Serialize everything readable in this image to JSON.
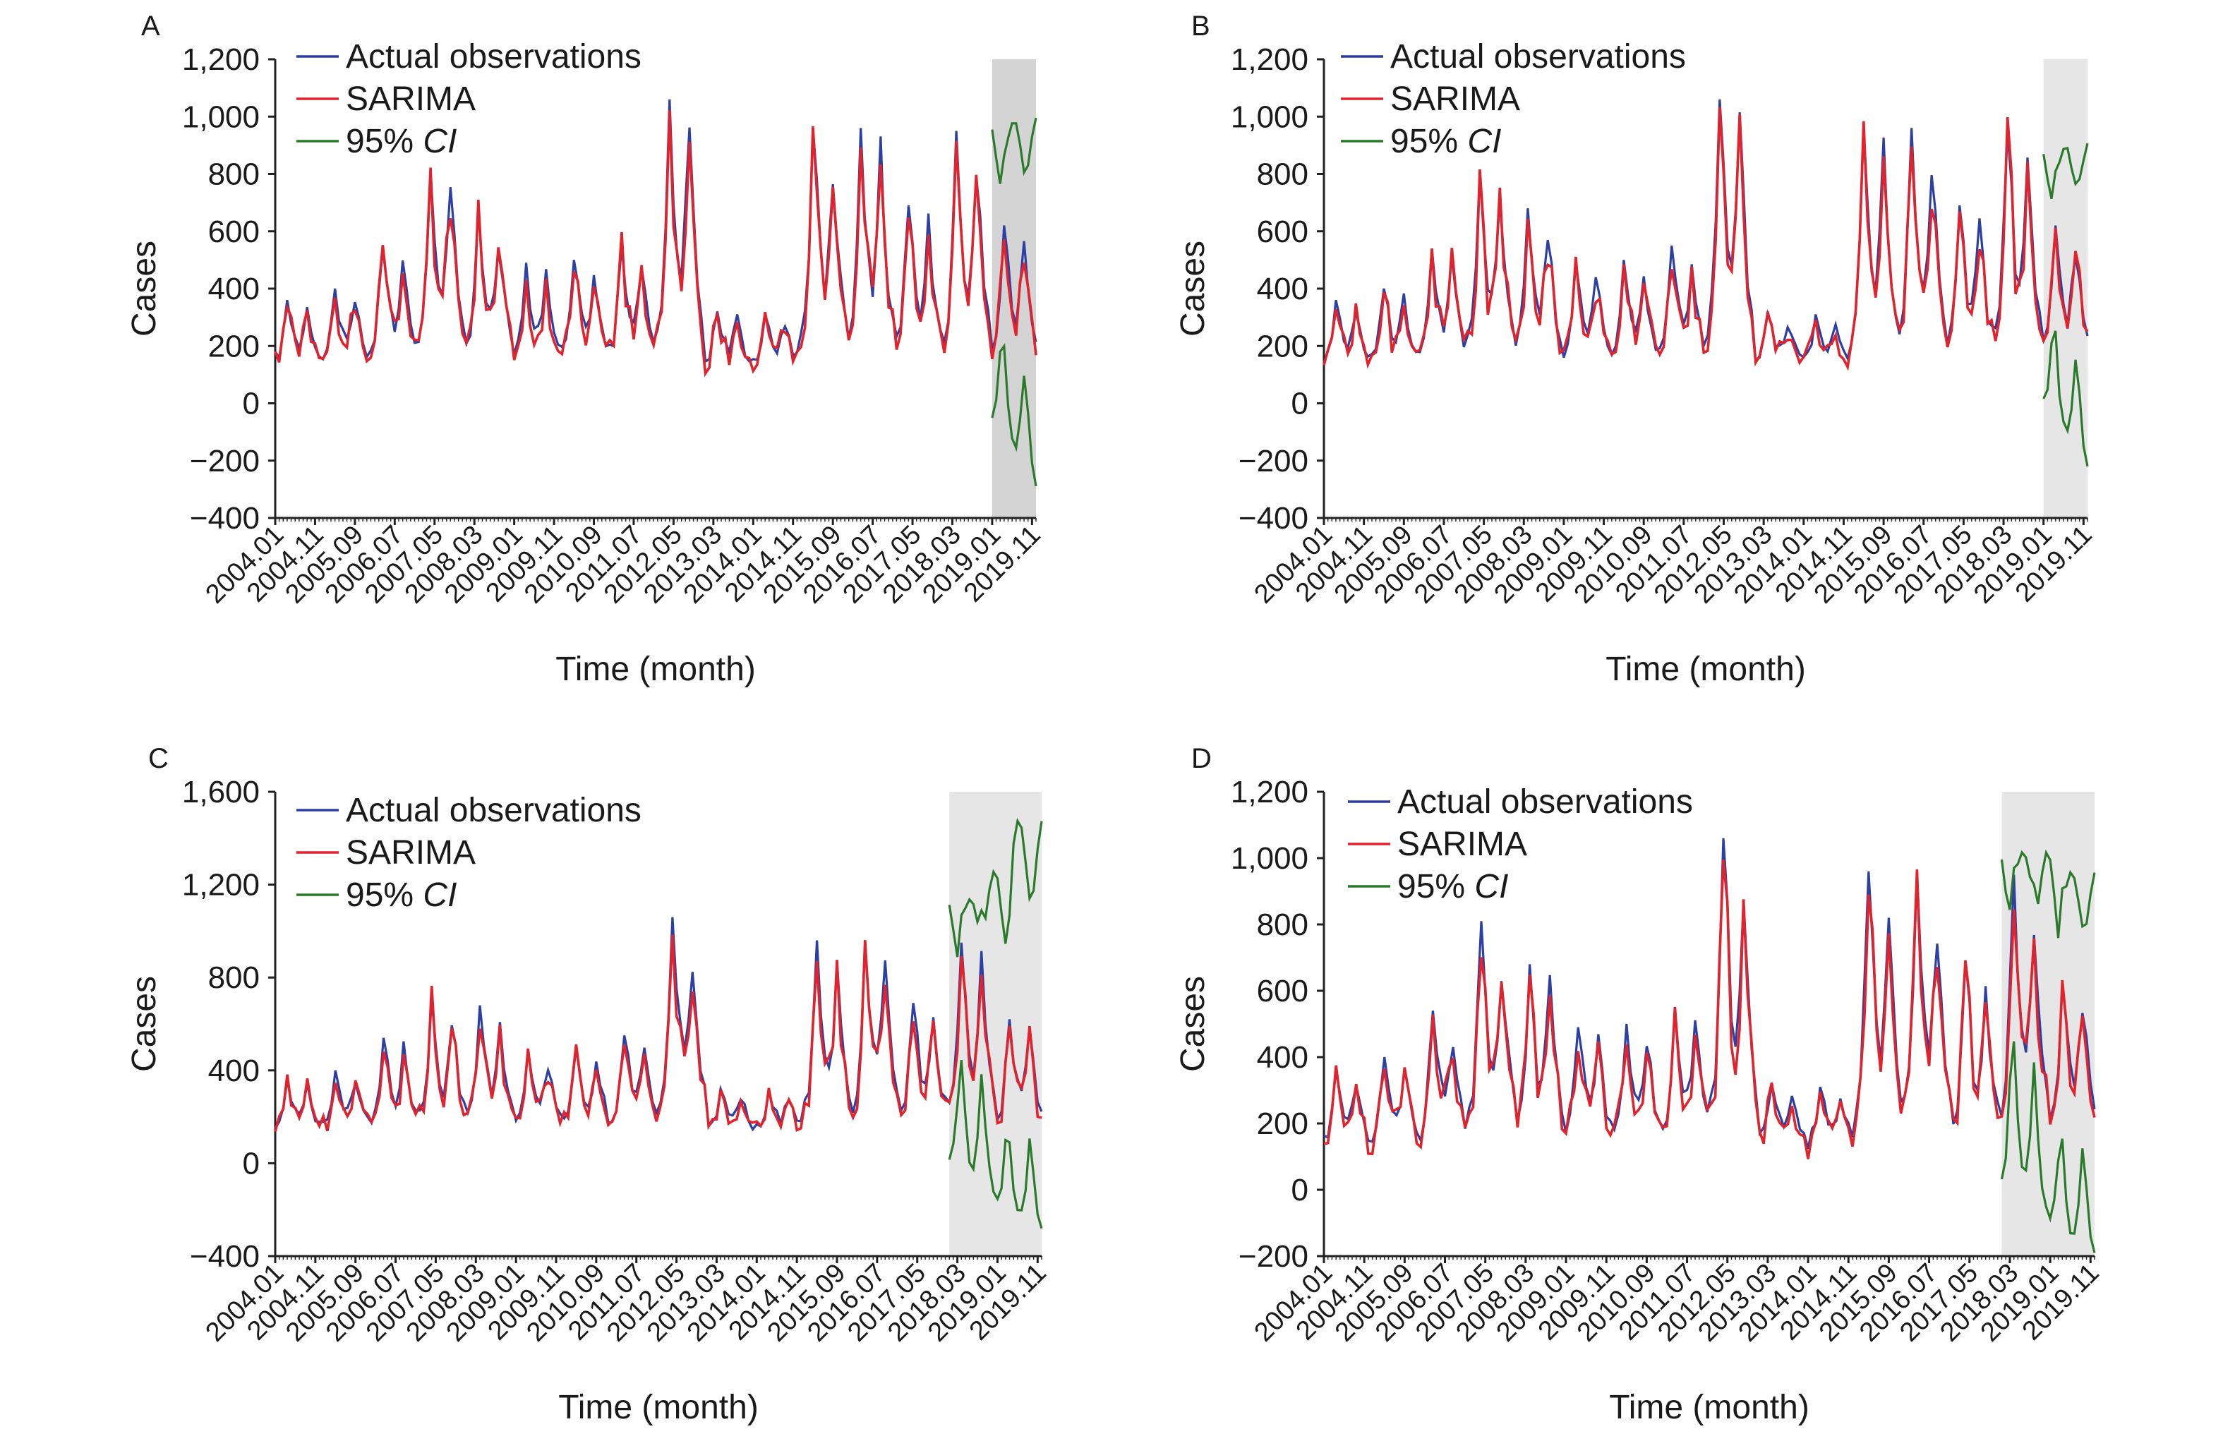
{
  "figure": {
    "time_axis": {
      "start_year": 2004,
      "end_year": 2019,
      "labels": [
        "2004.01",
        "2004.11",
        "2005.09",
        "2006.07",
        "2007.05",
        "2008.03",
        "2009.01",
        "2009.11",
        "2010.09",
        "2011.07",
        "2012.05",
        "2013.03",
        "2014.01",
        "2014.11",
        "2015.09",
        "2016.07",
        "2017.05",
        "2018.03",
        "2019.01",
        "2019.11"
      ]
    },
    "colors": {
      "actual": "#2e3fa3",
      "sarima": "#e0232c",
      "ci": "#2b7a2b",
      "forecast_shade_dark": "#d9d9d9",
      "forecast_shade_light": "#e6e6e6"
    }
  },
  "chart_data": [
    {
      "panel_label": "A",
      "type": "line",
      "xlabel": "Time (month)",
      "ylabel": "Cases",
      "ylim": [
        -400,
        1200
      ],
      "yticks": [
        "1,200",
        "1,000",
        "800",
        "600",
        "400",
        "200",
        "0",
        "−200",
        "−400"
      ],
      "ytick_values": [
        1200,
        1000,
        800,
        600,
        400,
        200,
        0,
        -200,
        -400
      ],
      "xtick_labels": [
        "2004.01",
        "2004.11",
        "2005.09",
        "2006.07",
        "2007.05",
        "2008.03",
        "2009.01",
        "2009.11",
        "2010.09",
        "2011.07",
        "2012.05",
        "2013.03",
        "2014.01",
        "2014.11",
        "2015.09",
        "2016.07",
        "2017.05",
        "2018.03",
        "2019.01",
        "2019.11"
      ],
      "legend": [
        {
          "label_main": "Actual observations",
          "label_italic": "",
          "color": "#2e3fa3"
        },
        {
          "label_main": "SARIMA",
          "label_italic": "",
          "color": "#e0232c"
        },
        {
          "label_main": "95% ",
          "label_italic": "CI",
          "color": "#2b7a2b"
        }
      ],
      "shaded_forecast_from": "2019.01",
      "shade_color": "#d4d4d4",
      "peaks": {
        "2004": 360,
        "2005": 400,
        "2006": 540,
        "2007": 810,
        "2008": 680,
        "2009": 490,
        "2010": 500,
        "2011": 550,
        "2012": 1060,
        "2013": 320,
        "2014": 310,
        "2015": 960,
        "2016": 960,
        "2017": 690,
        "2018": 950,
        "2019": 620
      },
      "ci_upper_peaks": [
        980,
        1000
      ],
      "ci_lower_min": -270,
      "legend_position": "top-left"
    },
    {
      "panel_label": "B",
      "type": "line",
      "xlabel": "Time (month)",
      "ylabel": "Cases",
      "ylim": [
        -400,
        1200
      ],
      "yticks": [
        "1,200",
        "1,000",
        "800",
        "600",
        "400",
        "200",
        "0",
        "−200",
        "−400"
      ],
      "ytick_values": [
        1200,
        1000,
        800,
        600,
        400,
        200,
        0,
        -200,
        -400
      ],
      "xtick_labels": [
        "2004.01",
        "2004.11",
        "2005.09",
        "2006.07",
        "2007.05",
        "2008.03",
        "2009.01",
        "2009.11",
        "2010.09",
        "2011.07",
        "2012.05",
        "2013.03",
        "2014.01",
        "2014.11",
        "2015.09",
        "2016.07",
        "2017.05",
        "2018.03",
        "2019.01",
        "2019.11"
      ],
      "legend": [
        {
          "label_main": "Actual observations",
          "label_italic": "",
          "color": "#2e3fa3"
        },
        {
          "label_main": "SARIMA",
          "label_italic": "",
          "color": "#e0232c"
        },
        {
          "label_main": "95% ",
          "label_italic": "CI",
          "color": "#2b7a2b"
        }
      ],
      "shaded_forecast_from": "2019.01",
      "shade_color": "#e6e6e6",
      "peaks": {
        "2004": 360,
        "2005": 400,
        "2006": 540,
        "2007": 810,
        "2008": 680,
        "2009": 490,
        "2010": 500,
        "2011": 550,
        "2012": 1060,
        "2013": 320,
        "2014": 310,
        "2015": 960,
        "2016": 960,
        "2017": 690,
        "2018": 950,
        "2019": 620
      },
      "ci_upper_peaks": [
        890,
        910
      ],
      "ci_lower_min": -200,
      "legend_position": "top-left"
    },
    {
      "panel_label": "C",
      "type": "line",
      "xlabel": "Time (month)",
      "ylabel": "Cases",
      "ylim": [
        -400,
        1600
      ],
      "yticks": [
        "1,600",
        "1,200",
        "800",
        "400",
        "0",
        "−400"
      ],
      "ytick_values": [
        1600,
        1200,
        800,
        400,
        0,
        -400
      ],
      "xtick_labels": [
        "2004.01",
        "2004.11",
        "2005.09",
        "2006.07",
        "2007.05",
        "2008.03",
        "2009.01",
        "2009.11",
        "2010.09",
        "2011.07",
        "2012.05",
        "2013.03",
        "2014.01",
        "2014.11",
        "2015.09",
        "2016.07",
        "2017.05",
        "2018.03",
        "2019.01",
        "2019.11"
      ],
      "legend": [
        {
          "label_main": "Actual observations",
          "label_italic": "",
          "color": "#2e3fa3"
        },
        {
          "label_main": "SARIMA",
          "label_italic": "",
          "color": "#e0232c"
        },
        {
          "label_main": "95% ",
          "label_italic": "CI",
          "color": "#2b7a2b"
        }
      ],
      "shaded_forecast_from": "2018.01",
      "shade_color": "#e6e6e6",
      "peaks": {
        "2004": 360,
        "2005": 400,
        "2006": 540,
        "2007": 710,
        "2008": 680,
        "2009": 490,
        "2010": 500,
        "2011": 550,
        "2012": 1060,
        "2013": 320,
        "2014": 310,
        "2015": 960,
        "2016": 960,
        "2017": 690,
        "2018": 950,
        "2019": 620
      },
      "ci_upper_peaks": [
        1140,
        1260,
        1480
      ],
      "ci_lower_min": -250,
      "legend_position": "top-left"
    },
    {
      "panel_label": "D",
      "type": "line",
      "xlabel": "Time (month)",
      "ylabel": "Cases",
      "ylim": [
        -200,
        1200
      ],
      "yticks": [
        "1,200",
        "1,000",
        "800",
        "600",
        "400",
        "200",
        "0",
        "−200"
      ],
      "ytick_values": [
        1200,
        1000,
        800,
        600,
        400,
        200,
        0,
        -200
      ],
      "xtick_labels": [
        "2004.01",
        "2004.11",
        "2005.09",
        "2006.07",
        "2007.05",
        "2008.03",
        "2009.01",
        "2009.11",
        "2010.09",
        "2011.07",
        "2012.05",
        "2013.03",
        "2014.01",
        "2014.11",
        "2015.09",
        "2016.07",
        "2017.05",
        "2018.03",
        "2019.01",
        "2019.11"
      ],
      "legend": [
        {
          "label_main": "Actual observations",
          "label_italic": "",
          "color": "#2e3fa3"
        },
        {
          "label_main": "SARIMA",
          "label_italic": "",
          "color": "#e0232c"
        },
        {
          "label_main": "95% ",
          "label_italic": "CI",
          "color": "#2b7a2b"
        }
      ],
      "shaded_forecast_from": "2018.01",
      "shade_color": "#e6e6e6",
      "peaks": {
        "2004": 360,
        "2005": 400,
        "2006": 540,
        "2007": 810,
        "2008": 680,
        "2009": 490,
        "2010": 500,
        "2011": 550,
        "2012": 1060,
        "2013": 320,
        "2014": 310,
        "2015": 960,
        "2016": 960,
        "2017": 690,
        "2018": 950,
        "2019": 620
      },
      "ci_upper_peaks": [
        1020,
        1020,
        960
      ],
      "ci_lower_min": -170,
      "legend_position": "top-left"
    }
  ]
}
